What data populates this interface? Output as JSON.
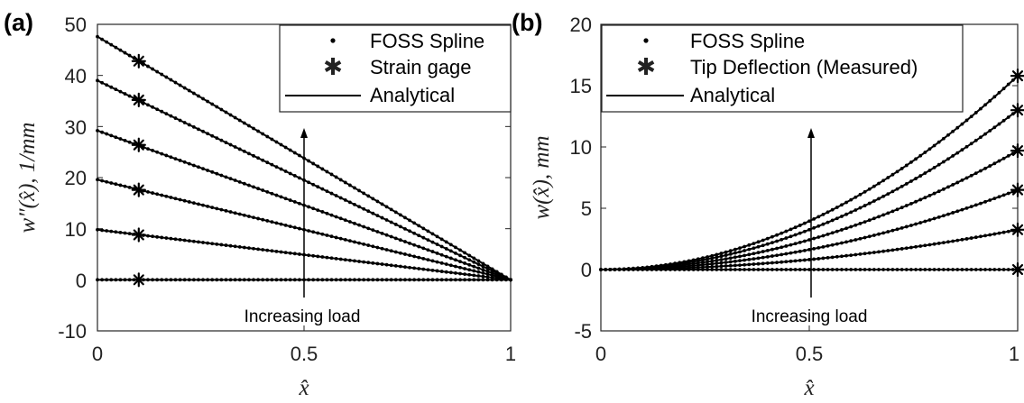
{
  "chart_data": [
    {
      "type": "line",
      "panel_label": "(a)",
      "xlabel": "x̂",
      "ylabel": "w″(x̂), 1/mm",
      "xlim": [
        0,
        1
      ],
      "ylim": [
        -10,
        50
      ],
      "xticks": [
        "0",
        "0.5",
        "1"
      ],
      "yticks": [
        "-10",
        "0",
        "10",
        "20",
        "30",
        "40",
        "50"
      ],
      "grid": false,
      "legend_position": "top-right",
      "legend": [
        "FOSS Spline",
        "Strain gage",
        "Analytical"
      ],
      "annotation": "Increasing load",
      "series": [
        {
          "analytical": {
            "x": [
              0,
              1
            ],
            "y": [
              0,
              0
            ]
          },
          "gage": {
            "x": [
              0.1
            ],
            "y": [
              0
            ]
          }
        },
        {
          "analytical": {
            "x": [
              0,
              1
            ],
            "y": [
              9.8,
              0
            ]
          },
          "gage": {
            "x": [
              0.1
            ],
            "y": [
              8.8
            ]
          }
        },
        {
          "analytical": {
            "x": [
              0,
              1
            ],
            "y": [
              19.6,
              0
            ]
          },
          "gage": {
            "x": [
              0.1
            ],
            "y": [
              17.6
            ]
          }
        },
        {
          "analytical": {
            "x": [
              0,
              1
            ],
            "y": [
              29.2,
              0
            ]
          },
          "gage": {
            "x": [
              0.1
            ],
            "y": [
              26.4
            ]
          }
        },
        {
          "analytical": {
            "x": [
              0,
              1
            ],
            "y": [
              39.0,
              0
            ]
          },
          "gage": {
            "x": [
              0.1
            ],
            "y": [
              35.2
            ]
          }
        },
        {
          "analytical": {
            "x": [
              0,
              1
            ],
            "y": [
              47.6,
              0
            ]
          },
          "gage": {
            "x": [
              0.1
            ],
            "y": [
              42.8
            ]
          }
        }
      ]
    },
    {
      "type": "line",
      "panel_label": "(b)",
      "xlabel": "x̂",
      "ylabel": "w(x̂), mm",
      "xlim": [
        0,
        1
      ],
      "ylim": [
        -5,
        20
      ],
      "xticks": [
        "0",
        "0.5",
        "1"
      ],
      "yticks": [
        "-5",
        "0",
        "5",
        "10",
        "15",
        "20"
      ],
      "grid": false,
      "legend_position": "top-left",
      "legend": [
        "FOSS Spline",
        "Tip Deflection (Measured)",
        "Analytical"
      ],
      "annotation": "Increasing load",
      "series": [
        {
          "analytical": {
            "x": [
              0,
              1
            ],
            "y": [
              0,
              0
            ]
          },
          "tip": {
            "x": [
              1
            ],
            "y": [
              0
            ]
          }
        },
        {
          "analytical": {
            "x": [
              0,
              1
            ],
            "y": [
              0,
              3.25
            ]
          },
          "tip": {
            "x": [
              1
            ],
            "y": [
              3.25
            ]
          }
        },
        {
          "analytical": {
            "x": [
              0,
              1
            ],
            "y": [
              0,
              6.5
            ]
          },
          "tip": {
            "x": [
              1
            ],
            "y": [
              6.5
            ]
          }
        },
        {
          "analytical": {
            "x": [
              0,
              1
            ],
            "y": [
              0,
              9.7
            ]
          },
          "tip": {
            "x": [
              1
            ],
            "y": [
              9.7
            ]
          }
        },
        {
          "analytical": {
            "x": [
              0,
              1
            ],
            "y": [
              0,
              13.0
            ]
          },
          "tip": {
            "x": [
              1
            ],
            "y": [
              13.0
            ]
          }
        },
        {
          "analytical": {
            "x": [
              0,
              1
            ],
            "y": [
              0,
              15.8
            ]
          },
          "tip": {
            "x": [
              1
            ],
            "y": [
              15.8
            ]
          }
        }
      ]
    }
  ]
}
